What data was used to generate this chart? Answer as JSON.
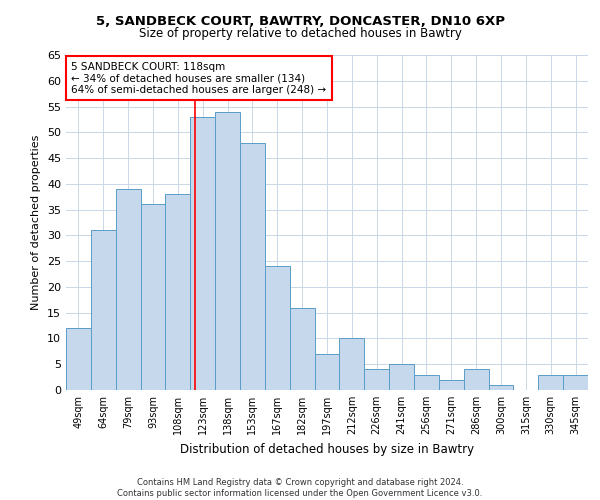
{
  "title1": "5, SANDBECK COURT, BAWTRY, DONCASTER, DN10 6XP",
  "title2": "Size of property relative to detached houses in Bawtry",
  "xlabel": "Distribution of detached houses by size in Bawtry",
  "ylabel": "Number of detached properties",
  "footer": "Contains HM Land Registry data © Crown copyright and database right 2024.\nContains public sector information licensed under the Open Government Licence v3.0.",
  "categories": [
    "49sqm",
    "64sqm",
    "79sqm",
    "93sqm",
    "108sqm",
    "123sqm",
    "138sqm",
    "153sqm",
    "167sqm",
    "182sqm",
    "197sqm",
    "212sqm",
    "226sqm",
    "241sqm",
    "256sqm",
    "271sqm",
    "286sqm",
    "300sqm",
    "315sqm",
    "330sqm",
    "345sqm"
  ],
  "values": [
    12,
    31,
    39,
    36,
    38,
    53,
    54,
    48,
    24,
    16,
    7,
    10,
    4,
    5,
    3,
    2,
    4,
    1,
    0,
    3,
    3
  ],
  "bar_color": "#c5d8ec",
  "bar_edge_color": "#5a9dc8",
  "grid_color": "#c8d8e8",
  "bg_color": "#ffffff",
  "red_line_x": 4.67,
  "annotation_title": "5 SANDBECK COURT: 118sqm",
  "annotation_line1": "← 34% of detached houses are smaller (134)",
  "annotation_line2": "64% of semi-detached houses are larger (248) →",
  "ylim": [
    0,
    65
  ],
  "yticks": [
    0,
    5,
    10,
    15,
    20,
    25,
    30,
    35,
    40,
    45,
    50,
    55,
    60,
    65
  ]
}
